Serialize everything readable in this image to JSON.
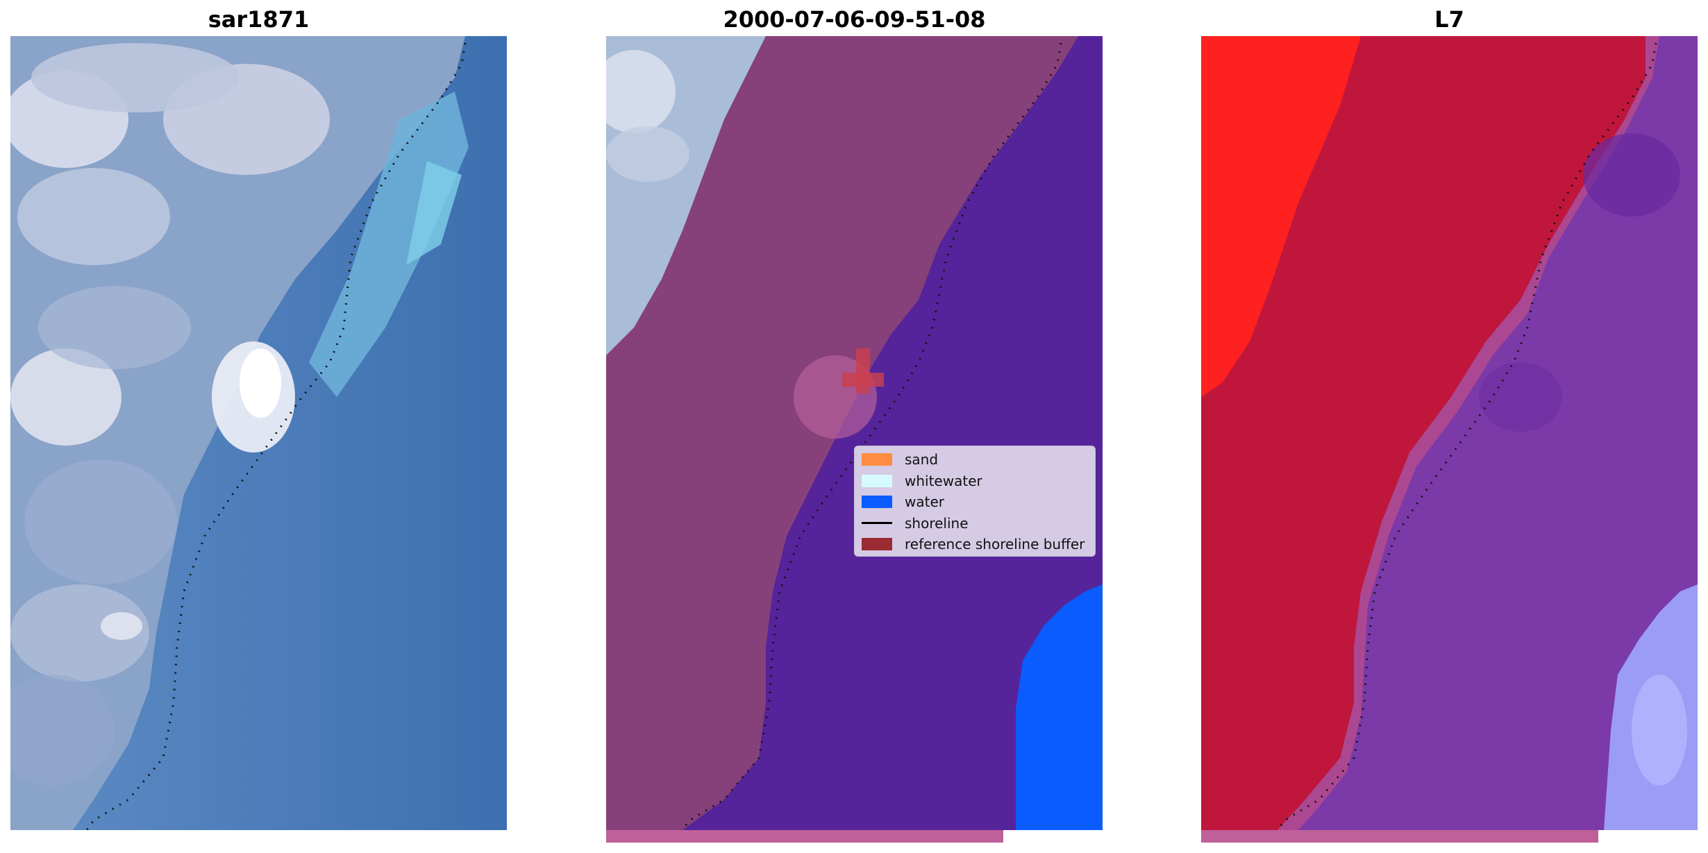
{
  "panels": [
    {
      "title": "sar1871"
    },
    {
      "title": "2000-07-06-09-51-08"
    },
    {
      "title": "L7"
    }
  ],
  "legend": {
    "items": [
      {
        "label": "sand",
        "color": "#ff8c40",
        "kind": "patch"
      },
      {
        "label": "whitewater",
        "color": "#d4fafe",
        "kind": "patch"
      },
      {
        "label": "water",
        "color": "#0a5cff",
        "kind": "patch"
      },
      {
        "label": "shoreline",
        "color": "#000000",
        "kind": "line"
      },
      {
        "label": "reference shoreline buffer",
        "color": "#9b2a33",
        "kind": "patch"
      }
    ]
  },
  "colors": {
    "sky_light": "#b8c6dc",
    "ocean": "#3e74b4",
    "ocean_light": "#6fb3d9",
    "land_purple": "#86417a",
    "water_class_purple": "#55249a",
    "red_land": "#c0163c",
    "bright_red": "#ff2020",
    "violet": "#7b3aa8",
    "pale_blue": "#9b9cf5"
  }
}
